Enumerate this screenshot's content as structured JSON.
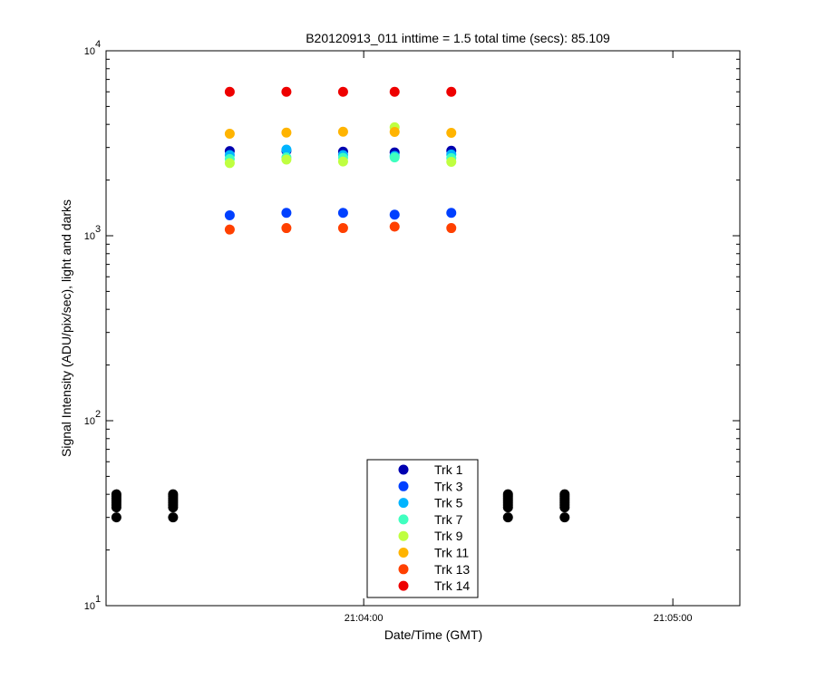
{
  "chart_data": {
    "type": "scatter",
    "title": "B20120913_011 inttime = 1.5 total time (secs): 85.109",
    "xlabel": "Date/Time (GMT)",
    "ylabel": "Signal Intensity (ADU/pix/sec), light and darks",
    "yscale": "log",
    "ylim": [
      10,
      10000
    ],
    "xlim": [
      "21:03:10",
      "21:05:13"
    ],
    "x_ticks": [
      "21:04:00",
      "21:05:00"
    ],
    "y_ticks": [
      {
        "value": 10,
        "base": "10",
        "exp": "1"
      },
      {
        "value": 100,
        "base": "10",
        "exp": "2"
      },
      {
        "value": 1000,
        "base": "10",
        "exp": "3"
      },
      {
        "value": 10000,
        "base": "10",
        "exp": "4"
      }
    ],
    "grid": false,
    "legend_position": "bottom-center",
    "light_times": [
      "21:03:34",
      "21:03:45",
      "21:03:56",
      "21:04:06",
      "21:04:17"
    ],
    "dark_times": [
      "21:03:12",
      "21:03:23",
      "21:04:28",
      "21:04:39"
    ],
    "series": [
      {
        "name": "Trk 1",
        "color": "#0000b0",
        "values": [
          2870,
          2880,
          2850,
          2820,
          2880
        ]
      },
      {
        "name": "Trk 3",
        "color": "#0040ff",
        "values": [
          1290,
          1330,
          1330,
          1300,
          1330
        ]
      },
      {
        "name": "Trk 5",
        "color": "#00b4ff",
        "values": [
          2730,
          2920,
          2730,
          2700,
          2750
        ]
      },
      {
        "name": "Trk 7",
        "color": "#40ffbf",
        "values": [
          2600,
          2650,
          2640,
          2650,
          2630
        ]
      },
      {
        "name": "Trk 9",
        "color": "#bfff40",
        "values": [
          2470,
          2580,
          2520,
          3860,
          2510
        ]
      },
      {
        "name": "Trk 11",
        "color": "#ffb400",
        "values": [
          3560,
          3610,
          3650,
          3640,
          3600
        ]
      },
      {
        "name": "Trk 13",
        "color": "#ff4000",
        "values": [
          1080,
          1100,
          1100,
          1120,
          1100
        ]
      },
      {
        "name": "Trk 14",
        "color": "#ee0000",
        "values": [
          6000,
          6000,
          6000,
          6000,
          6000
        ]
      }
    ],
    "darks": {
      "color": "#000000",
      "values": [
        30,
        34,
        35,
        36,
        37,
        38,
        39,
        40
      ]
    }
  }
}
